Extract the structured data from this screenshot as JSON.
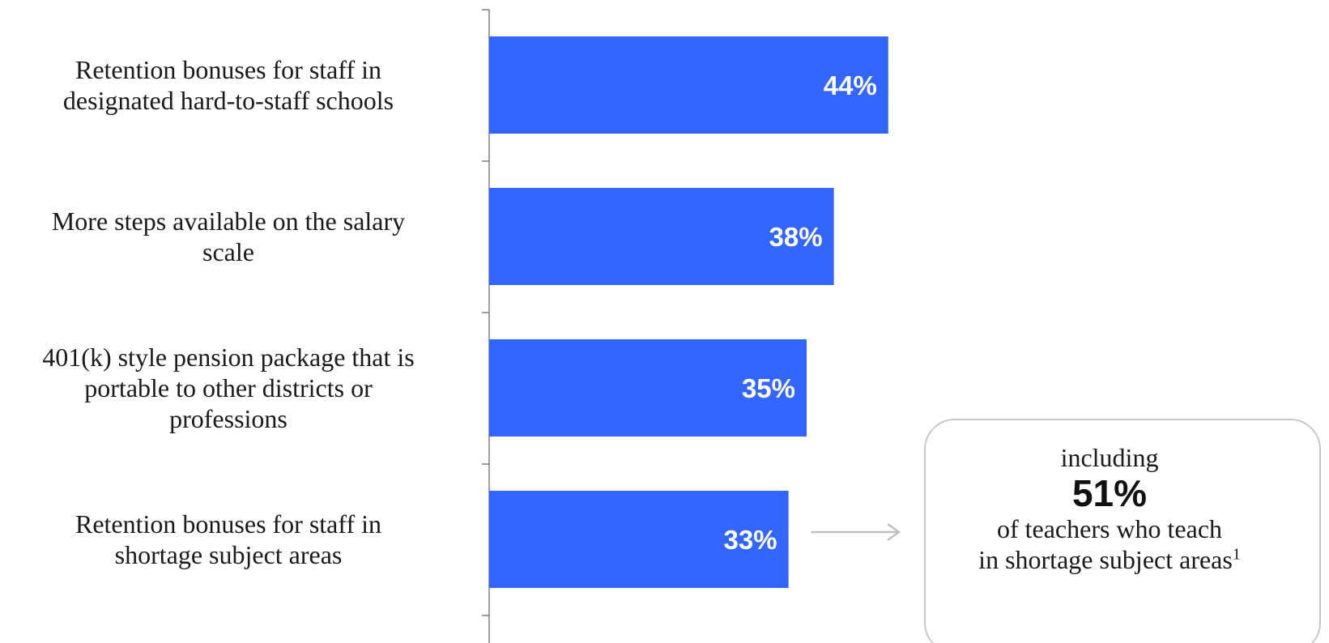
{
  "chart_data": {
    "type": "bar",
    "orientation": "horizontal",
    "categories": [
      "Retention bonuses for staff in designated hard-to-staff schools",
      "More steps available on the salary scale",
      "401(k) style pension package that is portable to other districts or professions",
      "Retention bonuses for staff in shortage subject areas"
    ],
    "category_lines": [
      [
        "Retention bonuses for staff in",
        "designated hard-to-staff schools"
      ],
      [
        "More steps available on the salary",
        "scale"
      ],
      [
        "401(k) style pension package that is",
        "portable to other districts or",
        "professions"
      ],
      [
        "Retention bonuses for staff in",
        "shortage subject areas"
      ]
    ],
    "values": [
      44,
      38,
      35,
      33
    ],
    "value_labels": [
      "44%",
      "38%",
      "35%",
      "33%"
    ],
    "unit": "%",
    "title": "",
    "xlabel": "",
    "ylabel": "",
    "xlim": [
      0,
      100
    ],
    "grid": false,
    "legend": "none",
    "bar_color": "#3366ff"
  },
  "callout": {
    "line1": "including",
    "highlight": "51%",
    "line2": "of teachers who teach",
    "line3": "in shortage subject areas",
    "footnote_marker": "1"
  },
  "colors": {
    "bar": "#3366ff",
    "axis": "#7f7f7f",
    "arrow": "#bfbfbf",
    "callout_border": "#c8c8c8"
  }
}
